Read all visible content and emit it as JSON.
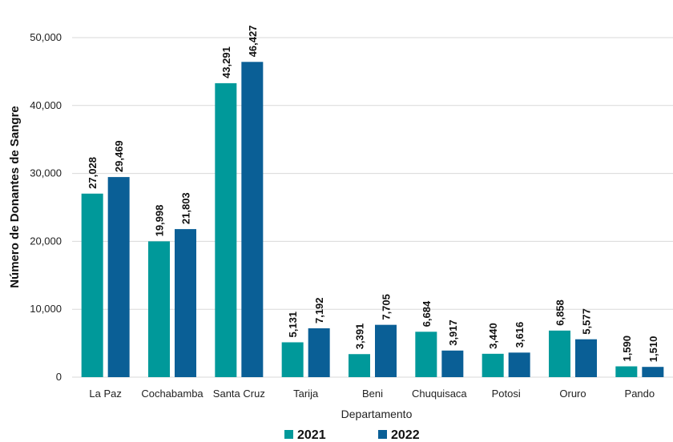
{
  "chart_data": {
    "type": "bar",
    "xlabel": "Departamento",
    "ylabel": "Número de Donantes de Sangre",
    "ylim": [
      0,
      50000
    ],
    "yticks": [
      0,
      10000,
      20000,
      30000,
      40000,
      50000
    ],
    "ytick_labels": [
      "0",
      "10,000",
      "20,000",
      "30,000",
      "40,000",
      "50,000"
    ],
    "grid": true,
    "legend_position": "bottom-center",
    "categories": [
      "La Paz",
      "Cochabamba",
      "Santa Cruz",
      "Tarija",
      "Beni",
      "Chuquisaca",
      "Potosi",
      "Oruro",
      "Pando"
    ],
    "series": [
      {
        "name": "2021",
        "color": "#00999a",
        "values": [
          27028,
          19998,
          43291,
          5131,
          3391,
          6684,
          3440,
          6858,
          1590
        ],
        "labels": [
          "27,028",
          "19,998",
          "43,291",
          "5,131",
          "3,391",
          "6,684",
          "3,440",
          "6,858",
          "1,590"
        ]
      },
      {
        "name": "2022",
        "color": "#0a5f96",
        "values": [
          29469,
          21803,
          46427,
          7192,
          7705,
          3917,
          3616,
          5577,
          1510
        ],
        "labels": [
          "29,469",
          "21,803",
          "46,427",
          "7,192",
          "7,705",
          "3,917",
          "3,616",
          "5,577",
          "1,510"
        ]
      }
    ]
  }
}
